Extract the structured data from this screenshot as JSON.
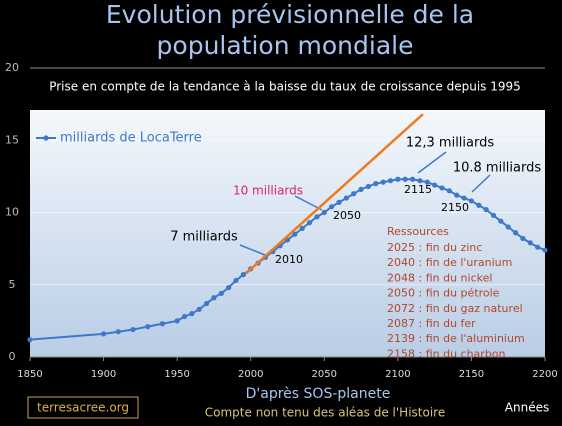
{
  "chart_data": {
    "type": "line",
    "title_lines": [
      "Evolution prévisionnelle de la",
      "population mondiale"
    ],
    "subtitle": "Prise en compte de la tendance à la baisse du taux de croissance depuis 1995",
    "x_label": "Années",
    "xlim": [
      1850,
      2200
    ],
    "xticks": [
      1850,
      1900,
      1950,
      2000,
      2050,
      2100,
      2150,
      2200
    ],
    "ylim": [
      0,
      20
    ],
    "yticks": [
      0,
      5,
      10,
      15,
      20
    ],
    "grid": true,
    "legend": "upper left",
    "series": [
      {
        "name": "milliards de LocaTerre",
        "color": "#3f78c8",
        "x": [
          1850,
          1900,
          1910,
          1920,
          1930,
          1940,
          1950,
          1955,
          1960,
          1965,
          1970,
          1975,
          1980,
          1985,
          1990,
          1995,
          2000,
          2005,
          2010,
          2015,
          2020,
          2025,
          2030,
          2035,
          2040,
          2045,
          2050,
          2055,
          2060,
          2065,
          2070,
          2075,
          2080,
          2085,
          2090,
          2095,
          2100,
          2105,
          2110,
          2115,
          2120,
          2125,
          2130,
          2135,
          2140,
          2145,
          2150,
          2155,
          2160,
          2165,
          2170,
          2175,
          2180,
          2185,
          2190,
          2195,
          2200
        ],
        "values": [
          1.2,
          1.6,
          1.75,
          1.9,
          2.1,
          2.3,
          2.5,
          2.8,
          3.0,
          3.3,
          3.7,
          4.1,
          4.4,
          4.8,
          5.3,
          5.7,
          6.1,
          6.5,
          6.9,
          7.3,
          7.7,
          8.1,
          8.5,
          8.9,
          9.3,
          9.7,
          10.0,
          10.4,
          10.7,
          11.0,
          11.3,
          11.6,
          11.8,
          12.0,
          12.1,
          12.2,
          12.3,
          12.3,
          12.3,
          12.2,
          12.1,
          11.9,
          11.7,
          11.5,
          11.2,
          11.0,
          10.8,
          10.5,
          10.2,
          9.8,
          9.4,
          9.0,
          8.6,
          8.2,
          7.9,
          7.6,
          7.4
        ]
      },
      {
        "color": "#f07a20",
        "x": [
          1997,
          2117
        ],
        "values": [
          5.8,
          16.8
        ]
      }
    ],
    "annotations": [
      "12,3 milliards",
      "10.8 milliards",
      "10 milliards",
      "7 milliards",
      "2115",
      "2150",
      "2050",
      "2010"
    ],
    "resources_title": "Ressources",
    "resources": [
      "2025 : fin du zinc",
      "2040 : fin de l'uranium",
      "2048 : fin du nickel",
      "2050 : fin du pétrole",
      "2072 : fin du gaz naturel",
      "2087 : fin du fer",
      "2139 : fin de l'aluminium",
      "2158 : fin du charbon"
    ],
    "source": "D'après SOS-planete",
    "note": "Compte non tenu des aléas de l'Histoire",
    "site": "terresacree.org"
  }
}
